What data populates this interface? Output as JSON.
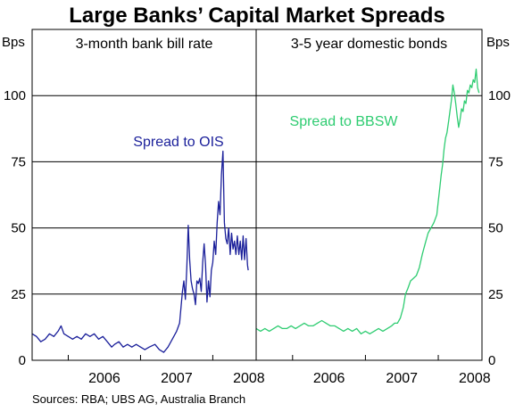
{
  "chart_data": {
    "type": "line",
    "title": "Large Banks’ Capital Market Spreads",
    "y_unit_label": "Bps",
    "ylim": [
      0,
      125
    ],
    "yticks": [
      0,
      25,
      50,
      75,
      100
    ],
    "grid": true,
    "source": "Sources: RBA; UBS AG, Australia Branch",
    "panels": [
      {
        "title": "3-month bank bill rate",
        "xlim": [
          2005.5,
          2008.6
        ],
        "xtick_labels": [
          "2006",
          "2007",
          "2008"
        ],
        "series": [
          {
            "name": "Spread to OIS",
            "color": "#1a1f9a",
            "points": [
              [
                2005.5,
                10
              ],
              [
                2005.56,
                9
              ],
              [
                2005.62,
                7
              ],
              [
                2005.68,
                8
              ],
              [
                2005.74,
                10
              ],
              [
                2005.8,
                9
              ],
              [
                2005.86,
                11
              ],
              [
                2005.9,
                13
              ],
              [
                2005.94,
                10
              ],
              [
                2006.0,
                9
              ],
              [
                2006.06,
                8
              ],
              [
                2006.12,
                9
              ],
              [
                2006.18,
                8
              ],
              [
                2006.24,
                10
              ],
              [
                2006.3,
                9
              ],
              [
                2006.36,
                10
              ],
              [
                2006.42,
                8
              ],
              [
                2006.48,
                9
              ],
              [
                2006.54,
                7
              ],
              [
                2006.6,
                5
              ],
              [
                2006.64,
                6
              ],
              [
                2006.7,
                7
              ],
              [
                2006.76,
                5
              ],
              [
                2006.82,
                6
              ],
              [
                2006.88,
                5
              ],
              [
                2006.94,
                6
              ],
              [
                2007.0,
                5
              ],
              [
                2007.06,
                4
              ],
              [
                2007.12,
                5
              ],
              [
                2007.2,
                6
              ],
              [
                2007.26,
                4
              ],
              [
                2007.32,
                3
              ],
              [
                2007.38,
                5
              ],
              [
                2007.42,
                7
              ],
              [
                2007.46,
                9
              ],
              [
                2007.5,
                11
              ],
              [
                2007.54,
                14
              ],
              [
                2007.56,
                20
              ],
              [
                2007.58,
                26
              ],
              [
                2007.6,
                30
              ],
              [
                2007.62,
                23
              ],
              [
                2007.64,
                35
              ],
              [
                2007.66,
                51
              ],
              [
                2007.68,
                38
              ],
              [
                2007.7,
                30
              ],
              [
                2007.72,
                27
              ],
              [
                2007.74,
                25
              ],
              [
                2007.76,
                21
              ],
              [
                2007.78,
                30
              ],
              [
                2007.8,
                29
              ],
              [
                2007.82,
                31
              ],
              [
                2007.84,
                26
              ],
              [
                2007.86,
                37
              ],
              [
                2007.88,
                44
              ],
              [
                2007.9,
                36
              ],
              [
                2007.92,
                22
              ],
              [
                2007.94,
                30
              ],
              [
                2007.96,
                24
              ],
              [
                2007.98,
                34
              ],
              [
                2008.0,
                37
              ],
              [
                2008.02,
                45
              ],
              [
                2008.04,
                40
              ],
              [
                2008.06,
                52
              ],
              [
                2008.08,
                60
              ],
              [
                2008.1,
                55
              ],
              [
                2008.12,
                70
              ],
              [
                2008.14,
                79
              ],
              [
                2008.16,
                52
              ],
              [
                2008.18,
                46
              ],
              [
                2008.2,
                44
              ],
              [
                2008.22,
                50
              ],
              [
                2008.24,
                40
              ],
              [
                2008.26,
                48
              ],
              [
                2008.28,
                42
              ],
              [
                2008.3,
                45
              ],
              [
                2008.32,
                40
              ],
              [
                2008.34,
                47
              ],
              [
                2008.36,
                40
              ],
              [
                2008.38,
                45
              ],
              [
                2008.4,
                38
              ],
              [
                2008.42,
                47
              ],
              [
                2008.44,
                38
              ],
              [
                2008.46,
                46
              ],
              [
                2008.48,
                36
              ],
              [
                2008.49,
                34
              ]
            ]
          }
        ]
      },
      {
        "title": "3-5 year domestic bonds",
        "xlim": [
          2005.5,
          2008.6
        ],
        "xtick_labels": [
          "2006",
          "2007",
          "2008"
        ],
        "series": [
          {
            "name": "Spread to BBSW",
            "color": "#2ecc71",
            "points": [
              [
                2005.5,
                12
              ],
              [
                2005.56,
                11
              ],
              [
                2005.62,
                12
              ],
              [
                2005.68,
                11
              ],
              [
                2005.74,
                12
              ],
              [
                2005.8,
                13
              ],
              [
                2005.86,
                12
              ],
              [
                2005.92,
                12
              ],
              [
                2005.98,
                13
              ],
              [
                2006.04,
                12
              ],
              [
                2006.1,
                13
              ],
              [
                2006.16,
                14
              ],
              [
                2006.22,
                13
              ],
              [
                2006.28,
                13
              ],
              [
                2006.34,
                14
              ],
              [
                2006.4,
                15
              ],
              [
                2006.46,
                14
              ],
              [
                2006.52,
                13
              ],
              [
                2006.58,
                13
              ],
              [
                2006.64,
                12
              ],
              [
                2006.7,
                11
              ],
              [
                2006.76,
                12
              ],
              [
                2006.82,
                11
              ],
              [
                2006.88,
                12
              ],
              [
                2006.94,
                10
              ],
              [
                2007.0,
                11
              ],
              [
                2007.06,
                10
              ],
              [
                2007.12,
                11
              ],
              [
                2007.18,
                12
              ],
              [
                2007.24,
                11
              ],
              [
                2007.3,
                12
              ],
              [
                2007.36,
                13
              ],
              [
                2007.4,
                14
              ],
              [
                2007.44,
                14
              ],
              [
                2007.48,
                16
              ],
              [
                2007.52,
                20
              ],
              [
                2007.55,
                25
              ],
              [
                2007.58,
                27
              ],
              [
                2007.62,
                30
              ],
              [
                2007.66,
                31
              ],
              [
                2007.7,
                32
              ],
              [
                2007.74,
                35
              ],
              [
                2007.78,
                40
              ],
              [
                2007.82,
                44
              ],
              [
                2007.86,
                48
              ],
              [
                2007.9,
                50
              ],
              [
                2007.94,
                52
              ],
              [
                2007.98,
                55
              ],
              [
                2008.0,
                60
              ],
              [
                2008.02,
                65
              ],
              [
                2008.04,
                70
              ],
              [
                2008.06,
                74
              ],
              [
                2008.08,
                80
              ],
              [
                2008.1,
                84
              ],
              [
                2008.12,
                86
              ],
              [
                2008.14,
                90
              ],
              [
                2008.16,
                94
              ],
              [
                2008.18,
                98
              ],
              [
                2008.2,
                104
              ],
              [
                2008.22,
                101
              ],
              [
                2008.24,
                97
              ],
              [
                2008.26,
                92
              ],
              [
                2008.28,
                88
              ],
              [
                2008.3,
                91
              ],
              [
                2008.32,
                95
              ],
              [
                2008.34,
                94
              ],
              [
                2008.36,
                98
              ],
              [
                2008.38,
                97
              ],
              [
                2008.4,
                102
              ],
              [
                2008.42,
                101
              ],
              [
                2008.44,
                104
              ],
              [
                2008.46,
                103
              ],
              [
                2008.48,
                106
              ],
              [
                2008.5,
                105
              ],
              [
                2008.52,
                110
              ],
              [
                2008.54,
                103
              ],
              [
                2008.56,
                101
              ]
            ]
          }
        ]
      }
    ]
  }
}
